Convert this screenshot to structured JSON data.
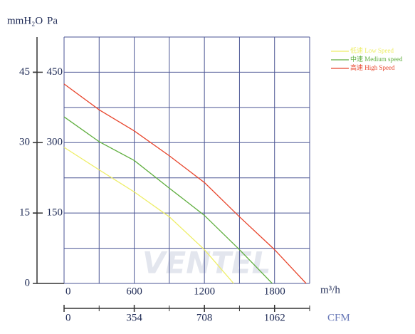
{
  "chart_data": {
    "type": "line",
    "y2_label": "mmH₂O",
    "y_label": "Pa",
    "x_label": "m³/h",
    "x2_label": "CFM",
    "watermark": "VENTEL",
    "xlim": [
      0,
      2100
    ],
    "xticks": [
      0,
      600,
      1200,
      1800
    ],
    "x2lim": [
      0,
      1239
    ],
    "x2ticks": [
      0,
      354,
      708,
      1062
    ],
    "ylim": [
      0,
      525
    ],
    "yticks": [
      0,
      150,
      300,
      450
    ],
    "y2lim": [
      0,
      52.5
    ],
    "y2ticks": [
      15,
      30,
      45
    ],
    "x_grid": [
      0,
      300,
      600,
      900,
      1200,
      1500,
      1800,
      2100
    ],
    "y_grid": [
      0,
      75,
      150,
      225,
      300,
      375,
      450,
      525
    ],
    "grid_color": "#4b5694",
    "series": [
      {
        "name": "低速 Low Speed",
        "color": "#eeee66",
        "x": [
          0,
          300,
          600,
          900,
          1200,
          1450
        ],
        "values": [
          290,
          242,
          195,
          142,
          72,
          0
        ]
      },
      {
        "name": "中速 Medium speed",
        "color": "#5fae3e",
        "x": [
          0,
          300,
          600,
          900,
          1200,
          1500,
          1780
        ],
        "values": [
          355,
          302,
          262,
          203,
          145,
          72,
          0
        ]
      },
      {
        "name": "高速 High Speed",
        "color": "#e8452c",
        "x": [
          0,
          300,
          600,
          900,
          1200,
          1500,
          1800,
          2070
        ],
        "values": [
          425,
          370,
          325,
          272,
          215,
          142,
          72,
          0
        ]
      }
    ]
  }
}
